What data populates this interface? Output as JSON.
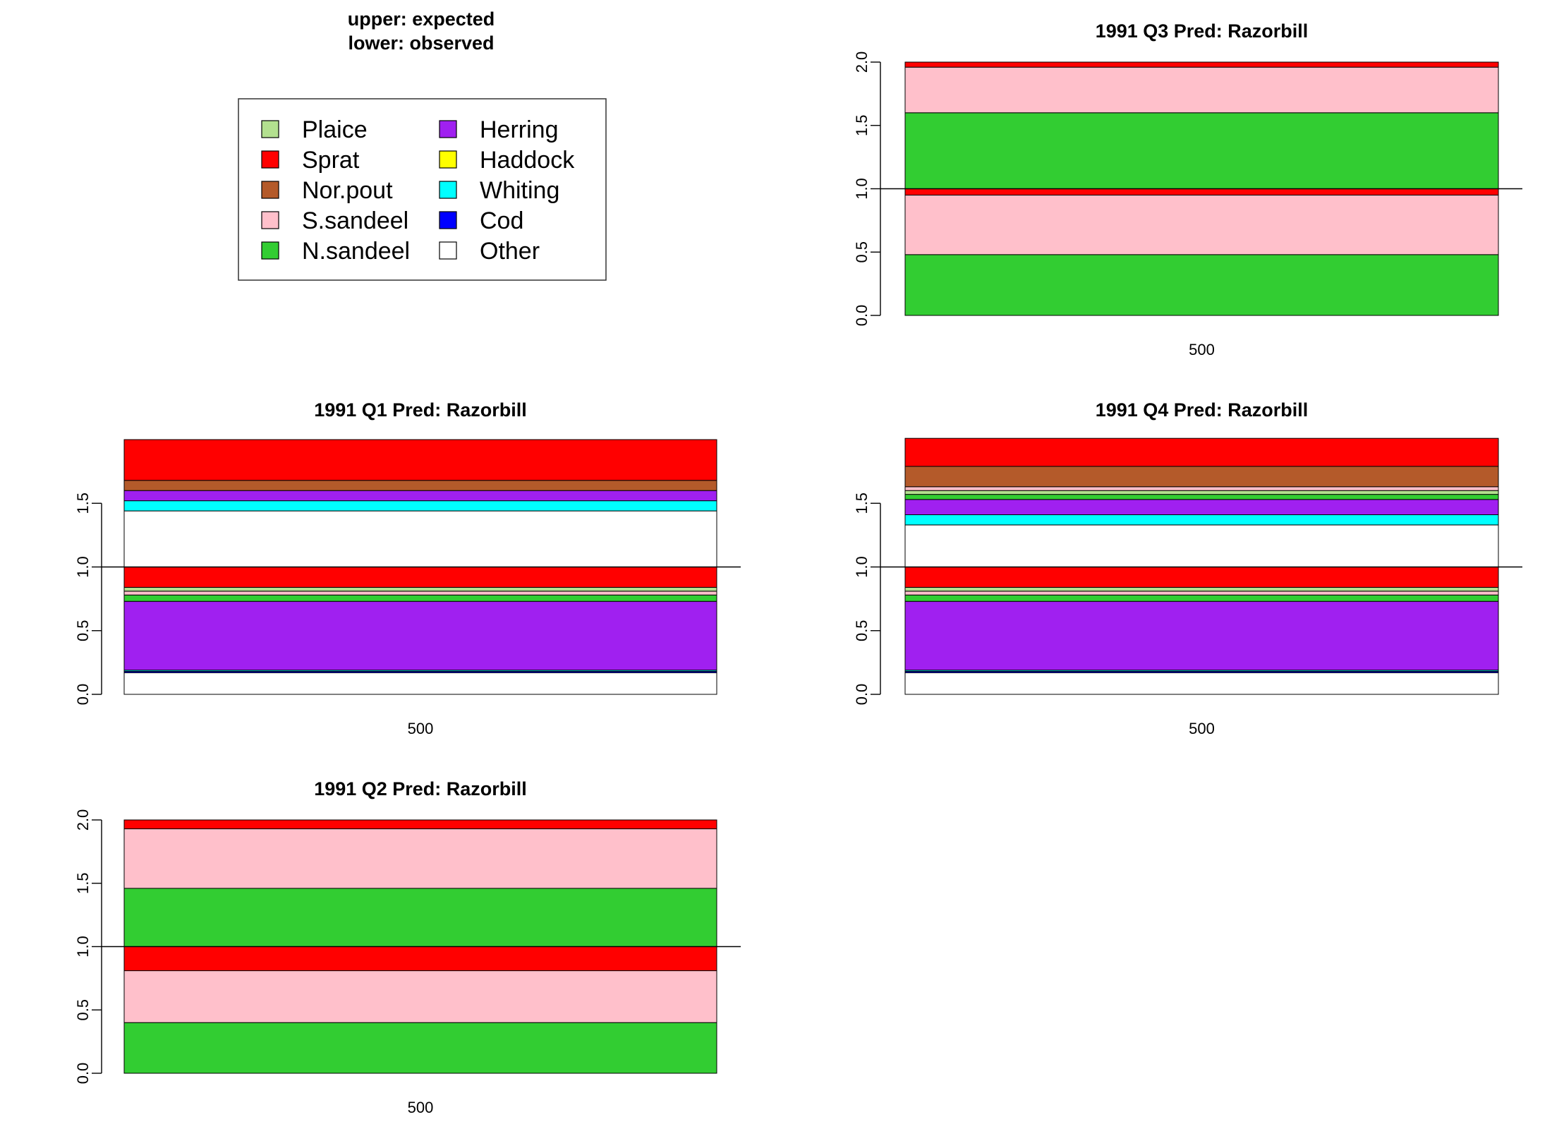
{
  "legend": {
    "heading_line1": "upper: expected",
    "heading_line2": "lower: observed",
    "items": [
      {
        "label": "Plaice",
        "color": "#b3e08f"
      },
      {
        "label": "Sprat",
        "color": "#ff0000"
      },
      {
        "label": "Nor.pout",
        "color": "#b45a2a"
      },
      {
        "label": "S.sandeel",
        "color": "#ffc0cb"
      },
      {
        "label": "N.sandeel",
        "color": "#32cd32"
      },
      {
        "label": "Herring",
        "color": "#a020f0"
      },
      {
        "label": "Haddock",
        "color": "#ffff00"
      },
      {
        "label": "Whiting",
        "color": "#00ffff"
      },
      {
        "label": "Cod",
        "color": "#0000ff"
      },
      {
        "label": "Other",
        "color": "#ffffff"
      }
    ]
  },
  "chart_data": [
    {
      "type": "bar",
      "title": "1991 Q3  Pred: Razorbill",
      "categories": [
        "500"
      ],
      "ylim": [
        0,
        2
      ],
      "yticks": [
        "0.0",
        "0.5",
        "1.0",
        "1.5",
        "2.0"
      ],
      "reference_line": 1.0,
      "observed": [
        {
          "name": "N.sandeel",
          "value": 0.48
        },
        {
          "name": "S.sandeel",
          "value": 0.47
        },
        {
          "name": "Sprat",
          "value": 0.05
        }
      ],
      "expected": [
        {
          "name": "N.sandeel",
          "value": 0.6
        },
        {
          "name": "S.sandeel",
          "value": 0.36
        },
        {
          "name": "Sprat",
          "value": 0.04
        }
      ]
    },
    {
      "type": "bar",
      "title": "1991 Q1  Pred: Razorbill",
      "categories": [
        "500"
      ],
      "ylim": [
        0,
        2
      ],
      "yticks": [
        "0.0",
        "0.5",
        "1.0",
        "1.5"
      ],
      "reference_line": 1.0,
      "observed": [
        {
          "name": "Other",
          "value": 0.17
        },
        {
          "name": "Cod",
          "value": 0.01
        },
        {
          "name": "Whiting",
          "value": 0.01
        },
        {
          "name": "Herring",
          "value": 0.54
        },
        {
          "name": "N.sandeel",
          "value": 0.05
        },
        {
          "name": "S.sandeel",
          "value": 0.03
        },
        {
          "name": "Plaice",
          "value": 0.03
        },
        {
          "name": "Sprat",
          "value": 0.16
        }
      ],
      "expected": [
        {
          "name": "Other",
          "value": 0.44
        },
        {
          "name": "Whiting",
          "value": 0.08
        },
        {
          "name": "Herring",
          "value": 0.08
        },
        {
          "name": "Nor.pout",
          "value": 0.08
        },
        {
          "name": "Sprat",
          "value": 0.32
        }
      ]
    },
    {
      "type": "bar",
      "title": "1991 Q4  Pred: Razorbill",
      "categories": [
        "500"
      ],
      "ylim": [
        0,
        2
      ],
      "yticks": [
        "0.0",
        "0.5",
        "1.0",
        "1.5"
      ],
      "reference_line": 1.0,
      "observed": [
        {
          "name": "Other",
          "value": 0.17
        },
        {
          "name": "Cod",
          "value": 0.01
        },
        {
          "name": "Whiting",
          "value": 0.01
        },
        {
          "name": "Herring",
          "value": 0.54
        },
        {
          "name": "N.sandeel",
          "value": 0.05
        },
        {
          "name": "S.sandeel",
          "value": 0.03
        },
        {
          "name": "Plaice",
          "value": 0.03
        },
        {
          "name": "Sprat",
          "value": 0.16
        }
      ],
      "expected": [
        {
          "name": "Other",
          "value": 0.33
        },
        {
          "name": "Whiting",
          "value": 0.08
        },
        {
          "name": "Herring",
          "value": 0.12
        },
        {
          "name": "N.sandeel",
          "value": 0.04
        },
        {
          "name": "Plaice",
          "value": 0.03
        },
        {
          "name": "S.sandeel",
          "value": 0.03
        },
        {
          "name": "Nor.pout",
          "value": 0.16
        },
        {
          "name": "Sprat",
          "value": 0.22
        }
      ]
    },
    {
      "type": "bar",
      "title": "1991 Q2  Pred: Razorbill",
      "categories": [
        "500"
      ],
      "ylim": [
        0,
        2
      ],
      "yticks": [
        "0.0",
        "0.5",
        "1.0",
        "1.5",
        "2.0"
      ],
      "reference_line": 1.0,
      "observed": [
        {
          "name": "N.sandeel",
          "value": 0.4
        },
        {
          "name": "S.sandeel",
          "value": 0.41
        },
        {
          "name": "Sprat",
          "value": 0.19
        }
      ],
      "expected": [
        {
          "name": "N.sandeel",
          "value": 0.46
        },
        {
          "name": "S.sandeel",
          "value": 0.47
        },
        {
          "name": "Sprat",
          "value": 0.07
        }
      ]
    }
  ]
}
